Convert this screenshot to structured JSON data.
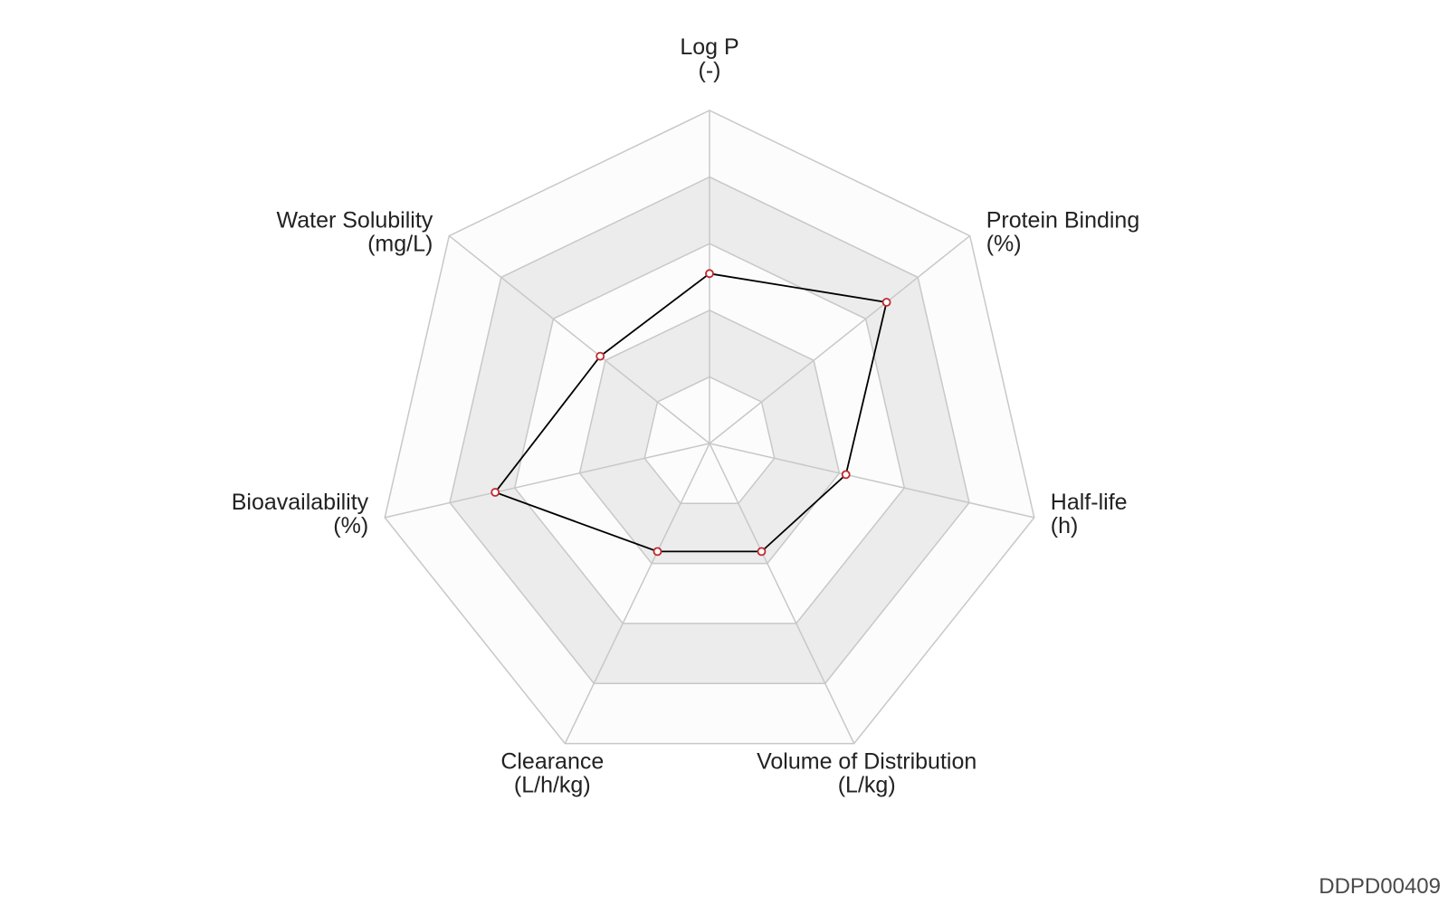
{
  "footer": {
    "code": "DDPD00409"
  },
  "chart_data": {
    "type": "radar",
    "axes": [
      {
        "name": "Log P",
        "unit": "(-)"
      },
      {
        "name": "Protein Binding",
        "unit": "(%)"
      },
      {
        "name": "Half-life",
        "unit": "(h)"
      },
      {
        "name": "Volume of Distribution",
        "unit": "(L/kg)"
      },
      {
        "name": "Clearance",
        "unit": "(L/h/kg)"
      },
      {
        "name": "Bioavailability",
        "unit": "(%)"
      },
      {
        "name": "Water Solubility",
        "unit": "(mg/L)"
      }
    ],
    "rings": 5,
    "series": [
      {
        "values": [
          0.51,
          0.68,
          0.42,
          0.36,
          0.36,
          0.66,
          0.42
        ]
      }
    ],
    "colors": {
      "grid": "#c8c8c8",
      "band_light": "#fcfcfc",
      "band_dark": "#ececec",
      "line": "#000000",
      "marker_edge": "#c0282d",
      "marker_fill": "#ffffff"
    }
  }
}
